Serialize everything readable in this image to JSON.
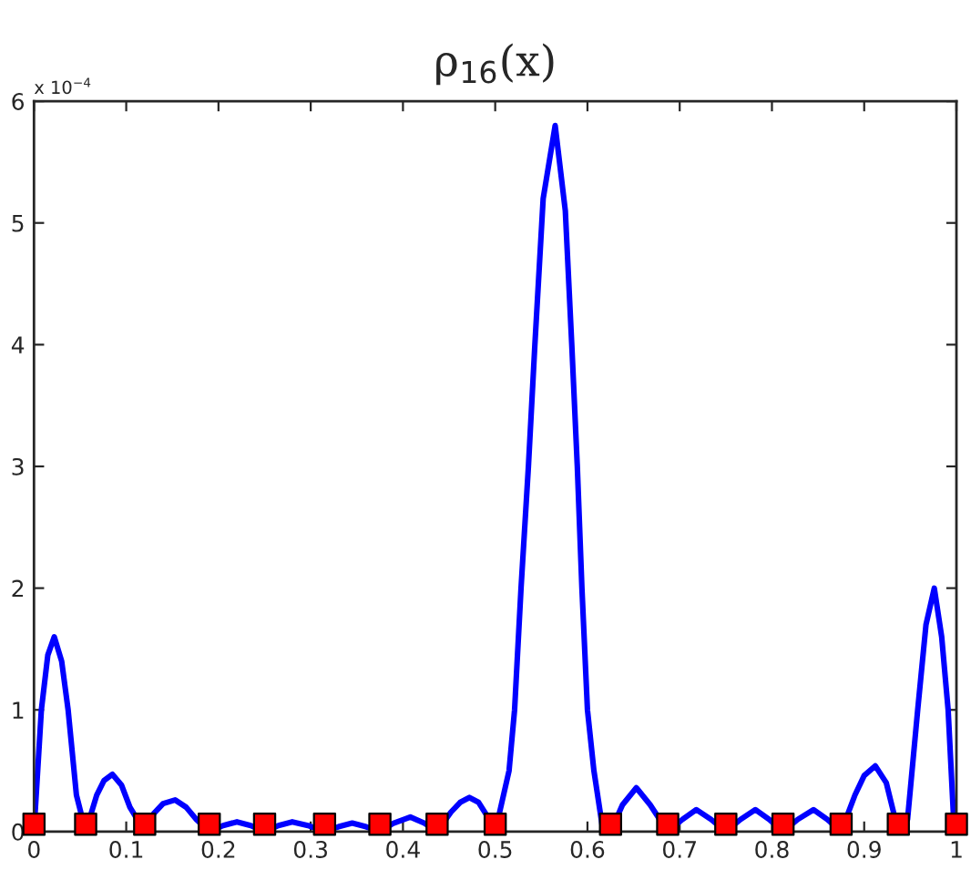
{
  "chart_data": {
    "type": "line",
    "title": "ρ$_{16}$(x)",
    "annotations": [
      "x 10$^{−4}$"
    ],
    "xlim": [
      0,
      1
    ],
    "xticks": [
      0,
      0.1,
      0.2,
      0.3,
      0.4,
      0.5,
      0.6,
      0.7,
      0.8,
      0.9,
      1
    ],
    "ylim": [
      0,
      6
    ],
    "yticks": [
      0,
      1,
      2,
      3,
      4,
      5,
      6
    ],
    "grid": false,
    "legend": false,
    "series": [
      {
        "color": "#0000ff",
        "marker": "none",
        "line_style": "solid",
        "x": [
          0,
          0.008,
          0.015,
          0.022,
          0.03,
          0.037,
          0.046,
          0.056,
          0.068,
          0.076,
          0.085,
          0.095,
          0.104,
          0.12,
          0.13,
          0.14,
          0.153,
          0.165,
          0.176,
          0.19,
          0.205,
          0.22,
          0.235,
          0.25,
          0.265,
          0.28,
          0.297,
          0.315,
          0.33,
          0.345,
          0.36,
          0.375,
          0.39,
          0.408,
          0.423,
          0.437,
          0.452,
          0.462,
          0.472,
          0.482,
          0.492,
          0.5,
          0.515,
          0.521,
          0.528,
          0.536,
          0.543,
          0.552,
          0.565,
          0.576,
          0.583,
          0.589,
          0.594,
          0.6,
          0.607,
          0.616,
          0.625,
          0.638,
          0.653,
          0.668,
          0.687,
          0.703,
          0.718,
          0.734,
          0.75,
          0.766,
          0.782,
          0.797,
          0.812,
          0.828,
          0.845,
          0.86,
          0.875,
          0.89,
          0.9,
          0.912,
          0.924,
          0.937,
          0.947,
          0.958,
          0.967,
          0.976,
          0.984,
          0.991,
          0.997,
          1
        ],
        "values": [
          0,
          1.0,
          1.45,
          1.6,
          1.4,
          1.0,
          0.3,
          0,
          0.3,
          0.42,
          0.47,
          0.38,
          0.2,
          0,
          0.15,
          0.23,
          0.26,
          0.2,
          0.1,
          0,
          0.05,
          0.08,
          0.05,
          0,
          0.05,
          0.08,
          0.05,
          0,
          0.04,
          0.07,
          0.04,
          0,
          0.07,
          0.12,
          0.07,
          0,
          0.16,
          0.24,
          0.28,
          0.24,
          0.12,
          0,
          0.5,
          1.0,
          2.0,
          3.0,
          4.0,
          5.2,
          5.8,
          5.1,
          4.0,
          3.0,
          2.0,
          1.0,
          0.5,
          0.05,
          0,
          0.22,
          0.36,
          0.22,
          0,
          0.1,
          0.18,
          0.1,
          0,
          0.1,
          0.18,
          0.1,
          0,
          0.1,
          0.18,
          0.1,
          0,
          0.3,
          0.46,
          0.54,
          0.4,
          0,
          0.1,
          1.0,
          1.7,
          2.0,
          1.6,
          1.0,
          0.1,
          0
        ]
      },
      {
        "type": "scatter",
        "color": "#ff0000",
        "marker": "square",
        "x": [
          0,
          0.056,
          0.12,
          0.19,
          0.25,
          0.315,
          0.375,
          0.437,
          0.5,
          0.625,
          0.687,
          0.75,
          0.812,
          0.875,
          0.937,
          1
        ],
        "values": [
          0.06,
          0.06,
          0.06,
          0.06,
          0.06,
          0.06,
          0.06,
          0.06,
          0.06,
          0.06,
          0.06,
          0.06,
          0.06,
          0.06,
          0.06,
          0.06
        ]
      }
    ]
  }
}
